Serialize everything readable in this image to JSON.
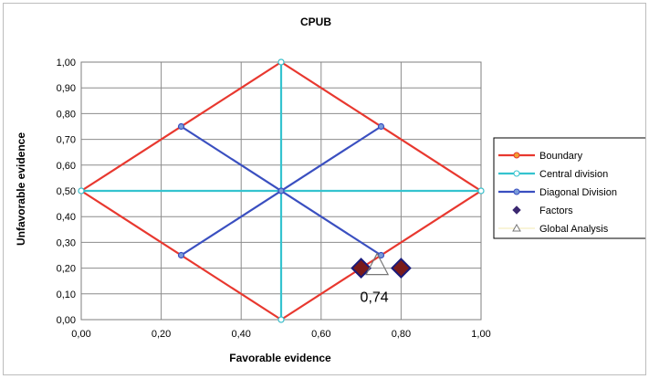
{
  "chart_data": {
    "type": "scatter",
    "title": "CPUB",
    "xlabel": "Favorable evidence",
    "ylabel": "Unfavorable evidence",
    "xlim": [
      0,
      1
    ],
    "ylim": [
      0,
      1
    ],
    "x_ticks": [
      "0,00",
      "0,20",
      "0,40",
      "0,60",
      "0,80",
      "1,00"
    ],
    "y_ticks": [
      "0,00",
      "0,10",
      "0,20",
      "0,30",
      "0,40",
      "0,50",
      "0,60",
      "0,70",
      "0,80",
      "0,90",
      "1,00"
    ],
    "grid": true,
    "legend_position": "right",
    "series": [
      {
        "name": "Boundary",
        "kind": "line",
        "color": "#e8382f",
        "points": [
          [
            0,
            0.5
          ],
          [
            0.5,
            1
          ],
          [
            1,
            0.5
          ],
          [
            0.5,
            0
          ],
          [
            0,
            0.5
          ]
        ],
        "marker_points": [
          [
            0,
            0.5
          ],
          [
            0.5,
            1
          ],
          [
            1,
            0.5
          ],
          [
            0.5,
            0
          ]
        ]
      },
      {
        "name": "Central division",
        "kind": "line",
        "color": "#35c3cf",
        "segments": [
          [
            [
              0,
              0.5
            ],
            [
              1,
              0.5
            ]
          ],
          [
            [
              0.5,
              0
            ],
            [
              0.5,
              1
            ]
          ]
        ],
        "marker_points": [
          [
            0,
            0.5
          ],
          [
            1,
            0.5
          ],
          [
            0.5,
            0
          ],
          [
            0.5,
            1
          ]
        ]
      },
      {
        "name": "Diagonal Division",
        "kind": "line",
        "color": "#3a4fc0",
        "segments": [
          [
            [
              0.25,
              0.75
            ],
            [
              0.75,
              0.25
            ]
          ],
          [
            [
              0.25,
              0.25
            ],
            [
              0.75,
              0.75
            ]
          ]
        ],
        "marker_points": [
          [
            0.25,
            0.75
          ],
          [
            0.75,
            0.25
          ],
          [
            0.25,
            0.25
          ],
          [
            0.75,
            0.75
          ],
          [
            0.5,
            0.5
          ]
        ]
      },
      {
        "name": "Factors",
        "kind": "marker",
        "color": "#7a1a1a",
        "legend_color": "#3b2870",
        "points": [
          [
            0.7,
            0.2
          ],
          [
            0.8,
            0.2
          ]
        ]
      },
      {
        "name": "Global Analysis",
        "kind": "marker",
        "color": "#777777",
        "points": [
          [
            0.74,
            0.2
          ]
        ]
      }
    ],
    "annotations": [
      {
        "text": "0,74",
        "x": 0.74,
        "y": 0.2
      }
    ]
  }
}
